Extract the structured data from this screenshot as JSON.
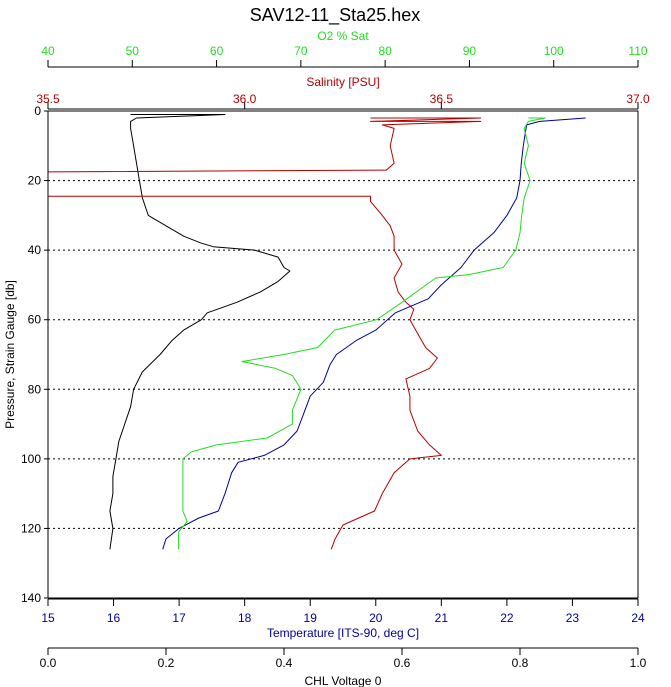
{
  "chart_data": {
    "type": "line",
    "title": "SAV12-11_Sta25.hex",
    "colors": {
      "oxygen": "#22dd22",
      "salinity": "#b30000",
      "temperature": "#000099",
      "chlorophyll": "#000000",
      "grid": "#000000"
    },
    "y_axis": {
      "label": "Pressure, Strain Gauge [db]",
      "range": [
        0,
        140
      ],
      "inverted": true,
      "ticks": [
        "0",
        "20",
        "40",
        "60",
        "80",
        "100",
        "120",
        "140"
      ],
      "grid": "dotted at 20-db intervals"
    },
    "x_axes": [
      {
        "key": "oxygen",
        "label": "O2 % Sat",
        "position": "top",
        "range": [
          40,
          110
        ],
        "ticks": [
          "40",
          "50",
          "60",
          "70",
          "80",
          "90",
          "100",
          "110"
        ]
      },
      {
        "key": "salinity",
        "label": "Salinity [PSU]",
        "position": "top",
        "range": [
          35.5,
          37.0
        ],
        "ticks": [
          "35.5",
          "36.0",
          "36.5",
          "37.0"
        ]
      },
      {
        "key": "temperature",
        "label": "Temperature [ITS-90, deg C]",
        "position": "bottom",
        "range": [
          15,
          24
        ],
        "ticks": [
          "15",
          "16",
          "17",
          "18",
          "19",
          "20",
          "21",
          "22",
          "23",
          "24"
        ]
      },
      {
        "key": "chlorophyll",
        "label": "CHL Voltage 0",
        "position": "bottom",
        "range": [
          0.0,
          1.0
        ],
        "ticks": [
          "0.0",
          "0.2",
          "0.4",
          "0.6",
          "0.8",
          "1.0"
        ]
      }
    ],
    "series": [
      {
        "key": "chlorophyll",
        "points": [
          [
            0.14,
            1
          ],
          [
            0.3,
            1
          ],
          [
            0.15,
            2
          ],
          [
            0.14,
            3
          ],
          [
            0.14,
            5
          ],
          [
            0.145,
            10
          ],
          [
            0.15,
            15
          ],
          [
            0.155,
            20
          ],
          [
            0.16,
            25
          ],
          [
            0.17,
            30
          ],
          [
            0.2,
            33
          ],
          [
            0.23,
            36
          ],
          [
            0.26,
            38
          ],
          [
            0.28,
            39
          ],
          [
            0.35,
            40
          ],
          [
            0.39,
            42
          ],
          [
            0.4,
            45
          ],
          [
            0.41,
            46
          ],
          [
            0.39,
            49
          ],
          [
            0.36,
            52
          ],
          [
            0.32,
            55
          ],
          [
            0.27,
            58
          ],
          [
            0.26,
            60
          ],
          [
            0.23,
            63
          ],
          [
            0.21,
            66
          ],
          [
            0.19,
            70
          ],
          [
            0.16,
            75
          ],
          [
            0.145,
            80
          ],
          [
            0.14,
            85
          ],
          [
            0.13,
            90
          ],
          [
            0.12,
            95
          ],
          [
            0.115,
            100
          ],
          [
            0.11,
            105
          ],
          [
            0.11,
            110
          ],
          [
            0.105,
            115
          ],
          [
            0.11,
            120
          ],
          [
            0.105,
            126
          ]
        ]
      },
      {
        "key": "salinity",
        "points": [
          [
            36.32,
            2
          ],
          [
            36.6,
            2
          ],
          [
            36.32,
            3
          ],
          [
            36.6,
            3
          ],
          [
            36.35,
            4
          ],
          [
            36.38,
            5
          ],
          [
            36.37,
            10
          ],
          [
            36.38,
            15
          ],
          [
            36.36,
            17
          ],
          [
            35.5,
            17.5
          ],
          [
            35.5,
            24.5
          ],
          [
            36.32,
            24.5
          ],
          [
            36.32,
            26
          ],
          [
            36.35,
            30
          ],
          [
            36.37,
            33
          ],
          [
            36.38,
            36
          ],
          [
            36.38,
            40
          ],
          [
            36.4,
            44
          ],
          [
            36.38,
            48
          ],
          [
            36.39,
            52
          ],
          [
            36.41,
            55
          ],
          [
            36.43,
            57
          ],
          [
            36.42,
            60
          ],
          [
            36.44,
            64
          ],
          [
            36.46,
            68
          ],
          [
            36.49,
            71
          ],
          [
            36.47,
            74
          ],
          [
            36.41,
            77
          ],
          [
            36.42,
            82
          ],
          [
            36.42,
            86
          ],
          [
            36.44,
            92
          ],
          [
            36.47,
            96
          ],
          [
            36.5,
            99
          ],
          [
            36.42,
            100
          ],
          [
            36.38,
            104
          ],
          [
            36.35,
            110
          ],
          [
            36.33,
            115
          ],
          [
            36.25,
            119
          ],
          [
            36.23,
            123
          ],
          [
            36.22,
            126
          ]
        ]
      },
      {
        "key": "temperature",
        "points": [
          [
            23.2,
            2
          ],
          [
            22.5,
            3
          ],
          [
            22.3,
            4
          ],
          [
            22.25,
            10
          ],
          [
            22.22,
            15
          ],
          [
            22.2,
            20
          ],
          [
            22.15,
            25
          ],
          [
            22.0,
            30
          ],
          [
            21.8,
            35
          ],
          [
            21.5,
            40
          ],
          [
            21.3,
            45
          ],
          [
            21.0,
            50
          ],
          [
            20.8,
            54
          ],
          [
            20.3,
            58
          ],
          [
            20.0,
            63
          ],
          [
            19.7,
            66
          ],
          [
            19.4,
            70
          ],
          [
            19.3,
            73
          ],
          [
            19.2,
            78
          ],
          [
            19.0,
            82
          ],
          [
            18.9,
            87
          ],
          [
            18.8,
            92
          ],
          [
            18.6,
            96
          ],
          [
            18.3,
            99
          ],
          [
            17.9,
            101
          ],
          [
            17.8,
            104
          ],
          [
            17.7,
            110
          ],
          [
            17.6,
            115
          ],
          [
            17.3,
            117
          ],
          [
            17.0,
            120
          ],
          [
            16.8,
            123
          ],
          [
            16.75,
            126
          ]
        ]
      },
      {
        "key": "oxygen",
        "points": [
          [
            97,
            2
          ],
          [
            99,
            2
          ],
          [
            97,
            3
          ],
          [
            96.5,
            5
          ],
          [
            97,
            10
          ],
          [
            96.5,
            15
          ],
          [
            97.2,
            20
          ],
          [
            96.5,
            25
          ],
          [
            96.2,
            30
          ],
          [
            96.0,
            35
          ],
          [
            95.5,
            40
          ],
          [
            94,
            45
          ],
          [
            90,
            47
          ],
          [
            86,
            48
          ],
          [
            82,
            55
          ],
          [
            79,
            60
          ],
          [
            74,
            63
          ],
          [
            72,
            68
          ],
          [
            68,
            70
          ],
          [
            63,
            72
          ],
          [
            67,
            74
          ],
          [
            69,
            76
          ],
          [
            70,
            80
          ],
          [
            69,
            86
          ],
          [
            69,
            90
          ],
          [
            66,
            94
          ],
          [
            60,
            96
          ],
          [
            57,
            98
          ],
          [
            56,
            100
          ],
          [
            56,
            110
          ],
          [
            56,
            115
          ],
          [
            56.5,
            118
          ],
          [
            55.5,
            121
          ],
          [
            55.5,
            126
          ]
        ]
      }
    ]
  }
}
